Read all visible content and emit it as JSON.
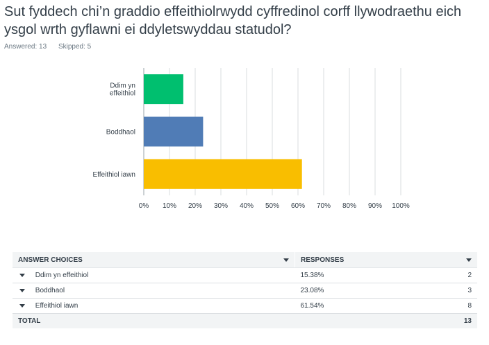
{
  "question": "Sut fyddech chi’n graddio effeithiolrwydd cyffredinol corff llywodraethu eich ysgol wrth gyflawni ei ddyletswyddau statudol?",
  "answered": "Answered: 13",
  "skipped": "Skipped: 5",
  "chart_data": {
    "type": "bar",
    "orientation": "horizontal",
    "categories": [
      "Ddim yn effeithiol",
      "Boddhaol",
      "Effeithiol iawn"
    ],
    "category_lines": [
      [
        "Ddim yn",
        "effeithiol"
      ],
      [
        "Boddhaol"
      ],
      [
        "Effeithiol iawn"
      ]
    ],
    "values": [
      15.38,
      23.08,
      61.54
    ],
    "colors": [
      "#00bf6f",
      "#507cb6",
      "#f9be00"
    ],
    "xlim": [
      0,
      100
    ],
    "xticks": [
      "0%",
      "10%",
      "20%",
      "30%",
      "40%",
      "50%",
      "60%",
      "70%",
      "80%",
      "90%",
      "100%"
    ],
    "grid": true
  },
  "table": {
    "headers": {
      "choices": "ANSWER CHOICES",
      "responses": "RESPONSES"
    },
    "rows": [
      {
        "choice": "Ddim yn effeithiol",
        "percent": "15.38%",
        "count": "2"
      },
      {
        "choice": "Boddhaol",
        "percent": "23.08%",
        "count": "3"
      },
      {
        "choice": "Effeithiol iawn",
        "percent": "61.54%",
        "count": "8"
      }
    ],
    "total_label": "TOTAL",
    "total_count": "13"
  }
}
